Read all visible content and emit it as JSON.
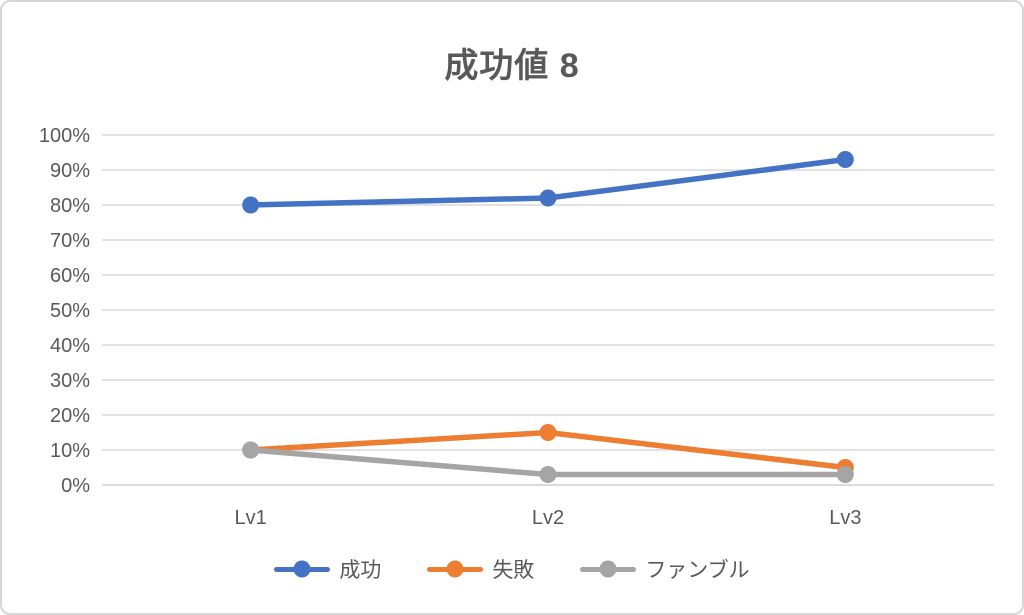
{
  "page": {
    "background_color": "#ffffff",
    "border_color": "#d6d6d6"
  },
  "chart_data": {
    "type": "line",
    "title": "成功値 8",
    "categories": [
      "Lv1",
      "Lv2",
      "Lv3"
    ],
    "series": [
      {
        "name": "成功",
        "color": "#4472C4",
        "values": [
          80,
          82,
          93
        ]
      },
      {
        "name": "失敗",
        "color": "#ED7D31",
        "values": [
          10,
          15,
          5
        ]
      },
      {
        "name": "ファンブル",
        "color": "#A5A5A5",
        "values": [
          10,
          3,
          3
        ]
      }
    ],
    "y_axis": {
      "min": 0,
      "max": 100,
      "step": 10,
      "tick_labels": [
        "0%",
        "10%",
        "20%",
        "30%",
        "40%",
        "50%",
        "60%",
        "70%",
        "80%",
        "90%",
        "100%"
      ]
    },
    "x_axis": {
      "tick_labels": [
        "Lv1",
        "Lv2",
        "Lv3"
      ]
    },
    "legend_position": "bottom",
    "grid": true,
    "style": {
      "text_color": "#595959",
      "gridline_color": "#d9d9d9",
      "axis_line_color": "#cfcfcf"
    }
  }
}
